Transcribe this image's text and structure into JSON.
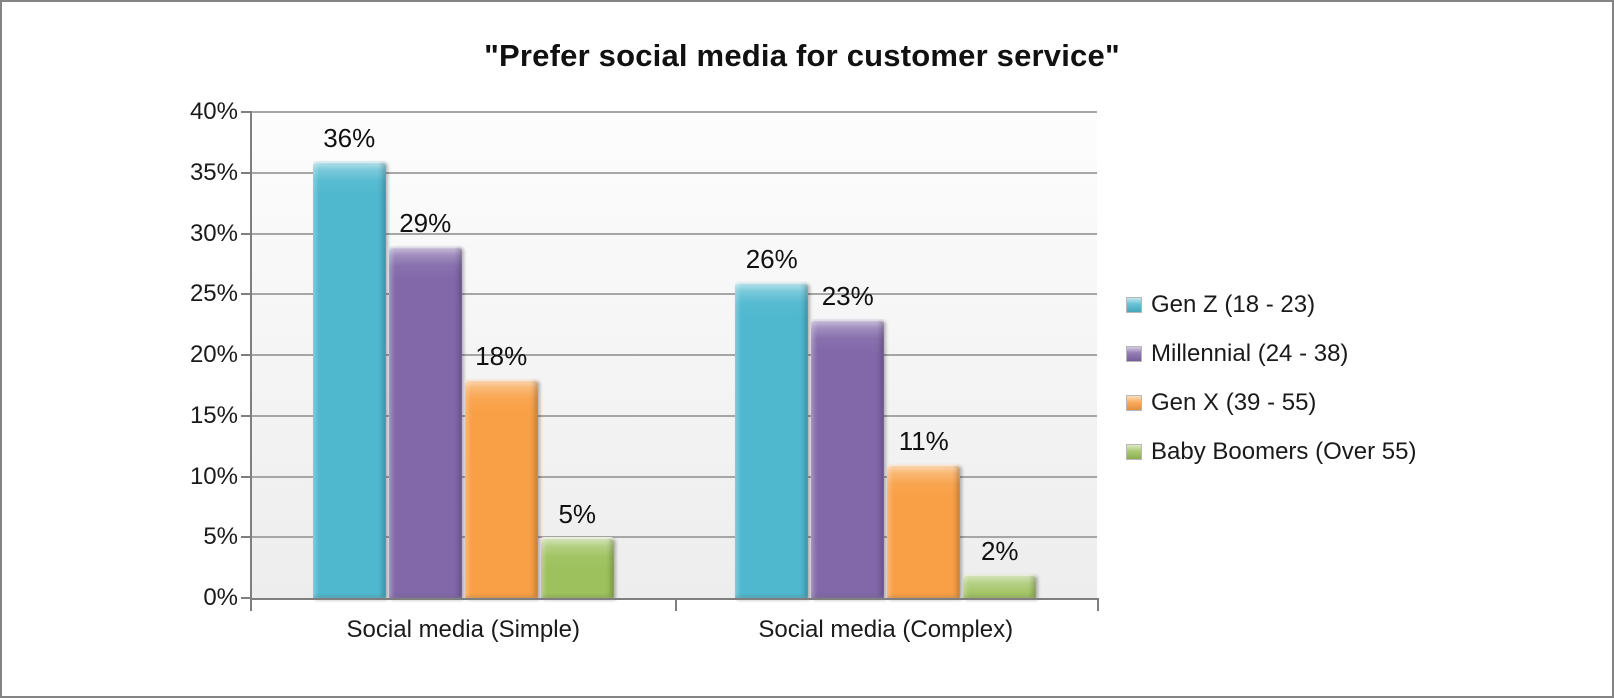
{
  "title": "\"Prefer social media for customer service\"",
  "chart_data": {
    "type": "bar",
    "title": "\"Prefer social media for customer service\"",
    "categories": [
      "Social media (Simple)",
      "Social media (Complex)"
    ],
    "series": [
      {
        "name": "Gen Z (18 - 23)",
        "color": "#4FB8CF",
        "values": [
          36,
          26
        ]
      },
      {
        "name": "Millennial (24 - 38)",
        "color": "#8268A9",
        "values": [
          29,
          23
        ]
      },
      {
        "name": "Gen X (39 - 55)",
        "color": "#F9A046",
        "values": [
          18,
          11
        ]
      },
      {
        "name": "Baby Boomers (Over 55)",
        "color": "#9DC15C",
        "values": [
          5,
          2
        ]
      }
    ],
    "value_labels": [
      [
        "36%",
        "29%",
        "18%",
        "5%"
      ],
      [
        "26%",
        "23%",
        "11%",
        "2%"
      ]
    ],
    "xlabel": "",
    "ylabel": "",
    "ylim": [
      0,
      40
    ],
    "yticks": [
      0,
      5,
      10,
      15,
      20,
      25,
      30,
      35,
      40
    ],
    "ytick_labels": [
      "0%",
      "5%",
      "10%",
      "15%",
      "20%",
      "25%",
      "30%",
      "35%",
      "40%"
    ],
    "grid": true,
    "legend_position": "right"
  },
  "colors": {
    "axis": "#7f7f7f",
    "gridline": "#a6a6a6",
    "frame_border": "#848484",
    "text": "#1a1a1a"
  }
}
